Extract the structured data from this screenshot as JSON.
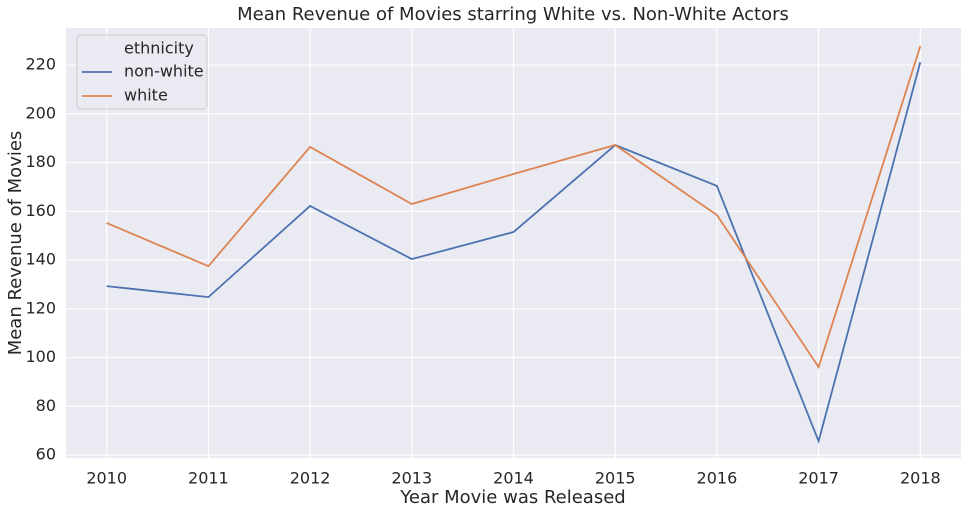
{
  "chart_data": {
    "type": "line",
    "title": "Mean Revenue of Movies starring White vs. Non-White Actors",
    "x_label": "Year Movie was Released",
    "y_label": "Mean Revenue of Movies",
    "x": [
      2010,
      2011,
      2012,
      2013,
      2014,
      2015,
      2016,
      2017,
      2018
    ],
    "series": [
      {
        "name": "non-white",
        "color": "#4c72b0",
        "values": [
          129.3,
          124.8,
          162.2,
          140.4,
          151.5,
          187.2,
          170.4,
          65.7,
          221.2
        ]
      },
      {
        "name": "white",
        "color": "#dd8452",
        "values": [
          155.2,
          137.5,
          186.4,
          163.0,
          175.3,
          187.2,
          158.5,
          96.1,
          227.8
        ]
      }
    ],
    "legend_title": "ethnicity",
    "legend_position": "upper-left",
    "xlim": [
      2009.6,
      2018.4
    ],
    "xticks": [
      2010,
      2011,
      2012,
      2013,
      2014,
      2015,
      2016,
      2017,
      2018
    ],
    "ylim": [
      58.8,
      235.2
    ],
    "yticks": [
      60,
      80,
      100,
      120,
      140,
      160,
      180,
      200,
      220
    ],
    "grid": true
  }
}
